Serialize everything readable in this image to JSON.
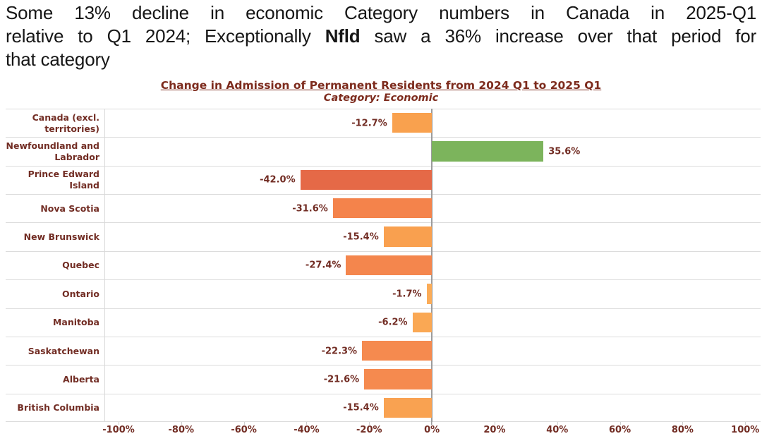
{
  "headline": {
    "line1": "Some 13% decline in economic Category numbers in Canada in 2025-Q1",
    "line2_pre": "relative to Q1 2024; Exceptionally ",
    "line2_bold": "Nfld",
    "line2_post": " saw a 36% increase over that period for",
    "line3": "that category"
  },
  "colors": {
    "headline_text": "#161616",
    "chart_title_text": "#7d2b1d",
    "axis_and_label_text": "#722d24",
    "row_separator": "#dcdcdc",
    "zero_line": "#9b9b9b",
    "negative_light": "#F9A14E",
    "negative_medium": "#F4864D",
    "negative_strong": "#E56947",
    "positive_green": "#7CB45C"
  },
  "chart_data": {
    "type": "bar",
    "orientation": "horizontal",
    "title": "Change in Admission of Permanent Residents from 2024 Q1 to 2025 Q1",
    "subtitle": "Category: Economic",
    "categories": [
      "Canada (excl. territories)",
      "Newfoundland and Labrador",
      "Prince Edward Island",
      "Nova Scotia",
      "New Brunswick",
      "Quebec",
      "Ontario",
      "Manitoba",
      "Saskatchewan",
      "Alberta",
      "British Columbia"
    ],
    "values": [
      -12.7,
      35.6,
      -42.0,
      -31.6,
      -15.4,
      -27.4,
      -1.7,
      -6.2,
      -22.3,
      -21.6,
      -15.4
    ],
    "value_labels": [
      "-12.7%",
      "35.6%",
      "-42.0%",
      "-31.6%",
      "-15.4%",
      "-27.4%",
      "-1.7%",
      "-6.2%",
      "-22.3%",
      "-21.6%",
      "-15.4%"
    ],
    "bar_colors": [
      "#F9A14E",
      "#7CB45C",
      "#E56947",
      "#F4834B",
      "#F9A04F",
      "#F4864D",
      "#FBAC58",
      "#FAA854",
      "#F58A4F",
      "#F58A4F",
      "#F9A251"
    ],
    "xlabel": "",
    "ylabel": "",
    "xlim": [
      -104.5,
      104.9
    ],
    "xticks": [
      -100,
      -80,
      -60,
      -40,
      -20,
      0,
      20,
      40,
      60,
      80,
      100
    ],
    "xtick_labels": [
      "-100%",
      "-80%",
      "-60%",
      "-40%",
      "-20%",
      "0%",
      "20%",
      "40%",
      "60%",
      "80%",
      "100%"
    ],
    "grid": "horizontal-row-separators",
    "zero_line": true,
    "legend": "none"
  }
}
